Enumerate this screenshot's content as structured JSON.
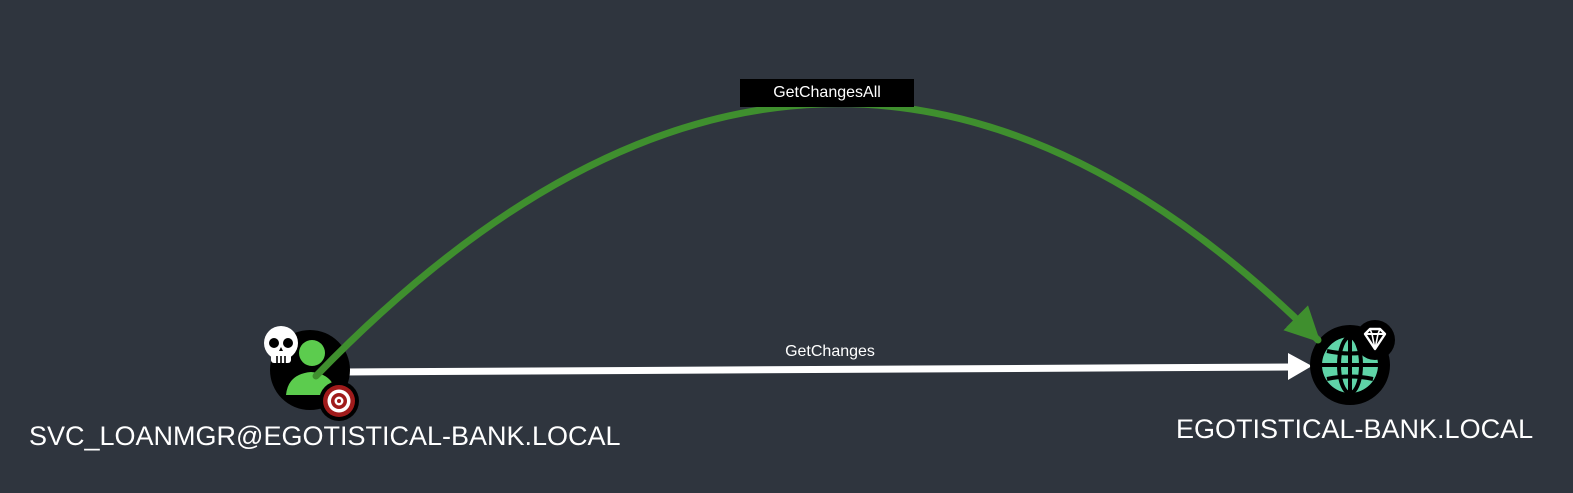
{
  "nodes": {
    "source": {
      "label": "SVC_LOANMGR@EGOTISTICAL-BANK.LOCAL",
      "type_icon": "user-icon",
      "badges": [
        "skull-icon",
        "target-icon"
      ],
      "colors": {
        "fill": "#5ccc4e",
        "ring": "#000000",
        "badge_target": "#a01b1b"
      }
    },
    "target": {
      "label": "EGOTISTICAL-BANK.LOCAL",
      "type_icon": "globe-icon",
      "badges": [
        "diamond-icon"
      ],
      "colors": {
        "fill": "#5fd4a8",
        "ring": "#000000"
      }
    }
  },
  "edges": [
    {
      "label": "GetChangesAll",
      "color": "#3f8f2e"
    },
    {
      "label": "GetChanges",
      "color": "#ffffff"
    }
  ],
  "colors": {
    "background": "#2f353e"
  }
}
